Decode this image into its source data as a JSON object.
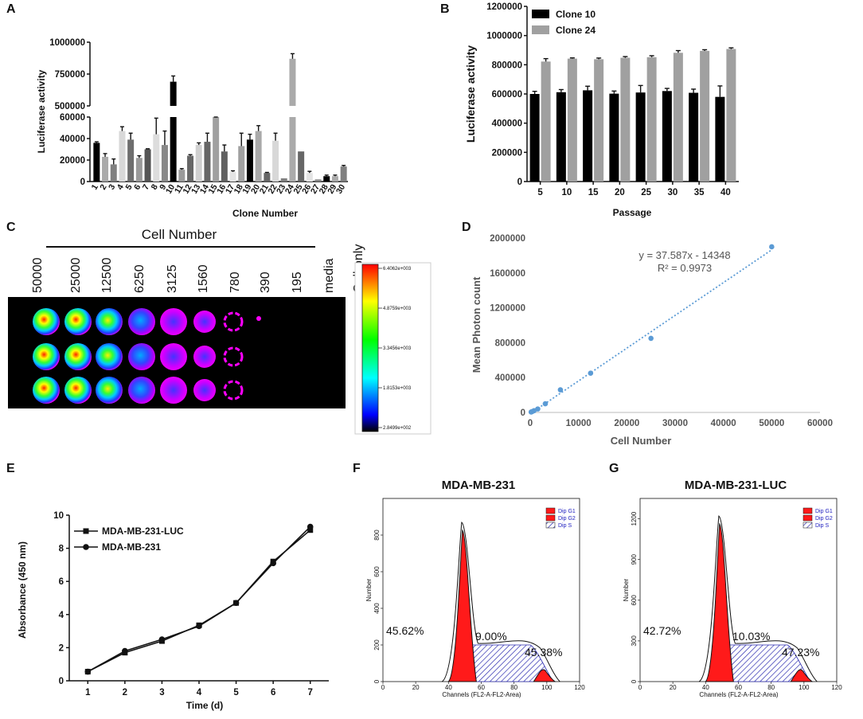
{
  "panels": {
    "A": {
      "label": "A",
      "type": "bar",
      "xlabel": "Clone Number",
      "ylabel": "Luciferase activity",
      "categories": [
        "1",
        "2",
        "3",
        "4",
        "5",
        "6",
        "7",
        "8",
        "9",
        "10",
        "11",
        "12",
        "13",
        "14",
        "15",
        "16",
        "17",
        "18",
        "19",
        "20",
        "21",
        "22",
        "23",
        "24",
        "25",
        "26",
        "27",
        "28",
        "29",
        "30"
      ],
      "values": [
        36000,
        23000,
        16000,
        47000,
        39000,
        22000,
        30000,
        44000,
        34000,
        690000,
        11000,
        24000,
        34000,
        37000,
        60000,
        28000,
        9000,
        33000,
        39000,
        47000,
        8000,
        38000,
        3000,
        870000,
        28000,
        8000,
        2000,
        5000,
        5000,
        14000
      ],
      "errors": [
        1000,
        3000,
        5000,
        4000,
        6000,
        2000,
        500,
        15000,
        13000,
        45000,
        1000,
        1000,
        2000,
        8000,
        85000,
        6000,
        1000,
        12000,
        5000,
        5000,
        500,
        7000,
        0,
        40000,
        0,
        1500,
        0,
        1000,
        1000,
        1000
      ],
      "colors": [
        "#000000",
        "#aaaaaa",
        "#808080",
        "#d8d8d8",
        "#6e6e6e",
        "#9a9a9a",
        "#555555",
        "#dddddd",
        "#888888",
        "#000000",
        "#9a9a9a",
        "#666666",
        "#d0d0d0",
        "#666666",
        "#a0a0a0",
        "#606060",
        "#e4e4e4",
        "#a0a0a0",
        "#000000",
        "#aaaaaa",
        "#666666",
        "#d8d8d8",
        "#808080",
        "#aaaaaa",
        "#666666",
        "#e4e4e4",
        "#888888",
        "#000000",
        "#aaaaaa",
        "#808080"
      ],
      "lower_ticks": [
        "0",
        "20000",
        "40000",
        "60000"
      ],
      "upper_ticks": [
        "500000",
        "750000",
        "1000000"
      ],
      "axis_break": [
        60000,
        500000
      ]
    },
    "B": {
      "label": "B",
      "type": "bar",
      "xlabel": "Passage",
      "ylabel": "Luciferase activity",
      "categories": [
        "5",
        "10",
        "15",
        "20",
        "25",
        "30",
        "35",
        "40"
      ],
      "series": [
        {
          "name": "Clone 10",
          "color": "#000000",
          "values": [
            600000,
            612000,
            625000,
            602000,
            610000,
            620000,
            608000,
            580000
          ],
          "errors": [
            18000,
            18000,
            28000,
            18000,
            48000,
            18000,
            25000,
            75000
          ]
        },
        {
          "name": "Clone 24",
          "color": "#a0a0a0",
          "values": [
            822000,
            842000,
            838000,
            848000,
            852000,
            882000,
            895000,
            908000
          ],
          "errors": [
            20000,
            5000,
            8000,
            8000,
            10000,
            15000,
            8000,
            8000
          ]
        }
      ],
      "yticks": [
        "0",
        "200000",
        "400000",
        "600000",
        "800000",
        "1000000",
        "1200000"
      ],
      "ylim": [
        0,
        1200000
      ]
    },
    "C": {
      "label": "C",
      "title": "Cell Number",
      "columns": [
        "50000",
        "25000",
        "12500",
        "6250",
        "3125",
        "1560",
        "780",
        "390",
        "195",
        "media",
        "Cell only"
      ],
      "colorbar_ticks": [
        "6.4062e+003",
        "4.8759e+003",
        "3.3456e+003",
        "1.8153e+003",
        "2.8499e+002"
      ]
    },
    "D": {
      "label": "D",
      "type": "scatter",
      "xlabel": "Cell Number",
      "ylabel": "Mean Photon count",
      "equation": "y = 37.587x - 14348",
      "r2": "R² = 0.9973",
      "x": [
        50000,
        25000,
        12500,
        6250,
        3125,
        1560,
        780,
        390,
        195
      ],
      "y": [
        1900000,
        850000,
        450000,
        260000,
        100000,
        40000,
        20000,
        10000,
        5000
      ],
      "xticks": [
        "0",
        "10000",
        "20000",
        "30000",
        "40000",
        "50000",
        "60000"
      ],
      "yticks": [
        "0",
        "400000",
        "800000",
        "1200000",
        "1600000",
        "2000000"
      ],
      "xlim": [
        0,
        60000
      ],
      "ylim": [
        0,
        2000000
      ],
      "point_color": "#5b9bd5"
    },
    "E": {
      "label": "E",
      "type": "line",
      "xlabel": "Time (d)",
      "ylabel": "Absorbance (450 nm)",
      "x": [
        1,
        2,
        3,
        4,
        5,
        6,
        7
      ],
      "series": [
        {
          "name": "MDA-MB-231-LUC",
          "marker": "square",
          "values": [
            0.55,
            1.7,
            2.4,
            3.35,
            4.7,
            7.2,
            9.1
          ]
        },
        {
          "name": "MDA-MB-231",
          "marker": "circle",
          "values": [
            0.55,
            1.8,
            2.5,
            3.3,
            4.7,
            7.1,
            9.3
          ]
        }
      ],
      "xticks": [
        "1",
        "2",
        "3",
        "4",
        "5",
        "6",
        "7"
      ],
      "yticks": [
        "0",
        "2",
        "4",
        "6",
        "8",
        "10"
      ],
      "xlim": [
        0.5,
        7.5
      ],
      "ylim": [
        0,
        10
      ]
    },
    "F": {
      "label": "F",
      "title": "MDA-MB-231",
      "xlabel": "Channels (FL2-A-FL2-Area)",
      "ylabel": "Number",
      "legend": [
        "Dip G1",
        "Dip G2",
        "Dip S"
      ],
      "pct_g1": "45.62%",
      "pct_s": "9.00%",
      "pct_g2": "45.38%",
      "xticks": [
        "0",
        "20",
        "40",
        "60",
        "80",
        "100",
        "120"
      ],
      "yticks": [
        "0",
        "200",
        "400",
        "600",
        "800"
      ],
      "ylim": [
        0,
        1000
      ]
    },
    "G": {
      "label": "G",
      "title": "MDA-MB-231-LUC",
      "xlabel": "Channels (FL2-A-FL2-Area)",
      "ylabel": "Number",
      "legend": [
        "Dip G1",
        "Dip G2",
        "Dip S"
      ],
      "pct_g1": "42.72%",
      "pct_s": "10.03%",
      "pct_g2": "47.23%",
      "xticks": [
        "0",
        "20",
        "40",
        "60",
        "80",
        "100",
        "120"
      ],
      "yticks": [
        "0",
        "300",
        "600",
        "900",
        "1200"
      ],
      "ylim": [
        0,
        1350
      ]
    }
  }
}
